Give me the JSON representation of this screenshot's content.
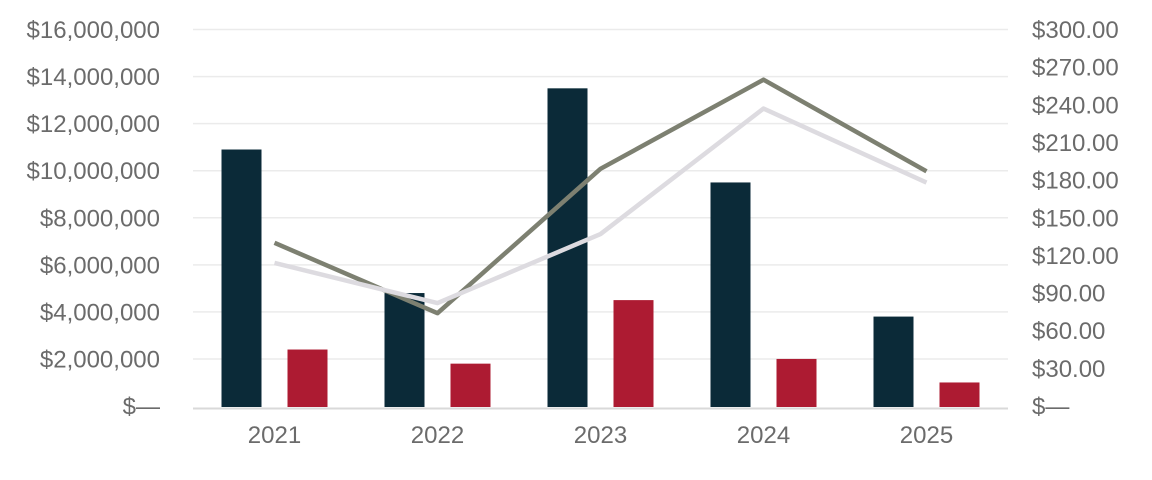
{
  "chart_data": {
    "type": "combo-bar-line",
    "title": "",
    "categories": [
      "2021",
      "2022",
      "2023",
      "2024",
      "2025"
    ],
    "series": [
      {
        "name": "dark-navy-bars",
        "type": "bar",
        "axis": "left",
        "color": "#0b2a38",
        "values": [
          10900000,
          4800000,
          13500000,
          9500000,
          3800000
        ]
      },
      {
        "name": "crimson-bars",
        "type": "bar",
        "axis": "left",
        "color": "#ad1b32",
        "values": [
          2400000,
          1800000,
          4500000,
          2000000,
          1000000
        ]
      },
      {
        "name": "dark-gray-line",
        "type": "line",
        "axis": "right",
        "color": "#7d8071",
        "values": [
          130,
          74,
          189,
          260,
          187
        ]
      },
      {
        "name": "light-gray-line",
        "type": "line",
        "axis": "right",
        "color": "#dddbe0",
        "values": [
          114,
          82,
          137,
          237,
          178
        ]
      }
    ],
    "left_axis": {
      "min": 0,
      "max": 16000000,
      "step": 2000000,
      "labels": [
        "$16,000,000",
        "$14,000,000",
        "$12,000,000",
        "$10,000,000",
        "$8,000,000",
        "$6,000,000",
        "$4,000,000",
        "$2,000,000",
        "$—"
      ]
    },
    "right_axis": {
      "min": 0,
      "max": 300,
      "step": 30,
      "labels": [
        "$300.00",
        "$270.00",
        "$240.00",
        "$210.00",
        "$180.00",
        "$150.00",
        "$120.00",
        "$90.00",
        "$60.00",
        "$30.00",
        "$—"
      ]
    },
    "grid": true,
    "legend_position": "none"
  },
  "styles": {
    "background": "#ffffff",
    "grid_color": "#ebebeb",
    "axis_line_color": "#d9d9d9",
    "label_color": "#6b6b6b"
  }
}
